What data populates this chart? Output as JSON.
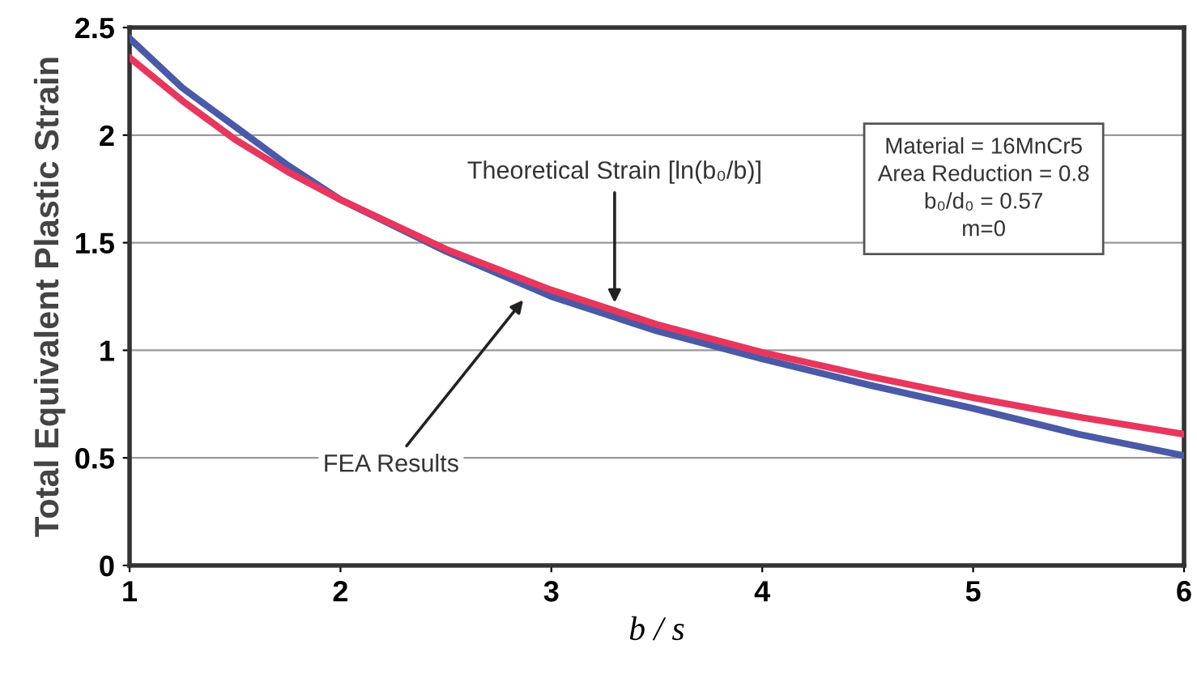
{
  "chart_data": {
    "type": "line",
    "xlabel": "b / s",
    "ylabel": "Total Equivalent Plastic Strain",
    "x": [
      1,
      1.25,
      1.5,
      1.75,
      2,
      2.5,
      3,
      3.5,
      4,
      4.5,
      5,
      5.5,
      6
    ],
    "series": [
      {
        "color": "#4a5aa8",
        "values": [
          2.45,
          2.22,
          2.04,
          1.86,
          1.7,
          1.46,
          1.25,
          1.09,
          0.96,
          0.84,
          0.73,
          0.61,
          0.51
        ]
      },
      {
        "color": "#e8365d",
        "values": [
          2.36,
          2.16,
          1.98,
          1.83,
          1.7,
          1.47,
          1.28,
          1.12,
          0.99,
          0.88,
          0.78,
          0.69,
          0.61
        ]
      }
    ],
    "xlim": [
      1,
      6
    ],
    "xticks": [
      1,
      2,
      3,
      4,
      5,
      6
    ],
    "ylim": [
      0,
      2.5
    ],
    "yticks": [
      0,
      0.5,
      1,
      1.5,
      2,
      2.5
    ],
    "grid": "y",
    "legend": false,
    "marker": "none",
    "line_style": "solid",
    "annotations": [
      {
        "text": "Theoretical Strain [ln(b₀/b)]",
        "x": 3.3,
        "y": 1.2
      },
      {
        "text": "FEA Results",
        "x": 2.88,
        "y": 1.25
      },
      "Material = 16MnCr5\nArea Reduction = 0.8\nb₀/d₀ = 0.57\nm=0"
    ]
  }
}
